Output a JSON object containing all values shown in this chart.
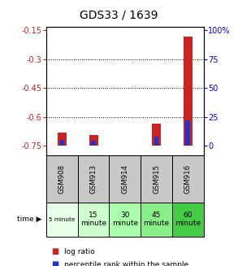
{
  "title": "GDS33 / 1639",
  "samples": [
    "GSM908",
    "GSM913",
    "GSM914",
    "GSM915",
    "GSM916"
  ],
  "time_labels": [
    "5 minute",
    "15\nminute",
    "30\nminute",
    "45\nminute",
    "60\nminute"
  ],
  "log_ratios": [
    -0.681,
    -0.693,
    -0.75,
    -0.633,
    -0.183
  ],
  "percentile_ranks": [
    5.0,
    4.5,
    0.5,
    8.0,
    22.0
  ],
  "ymin": -0.8,
  "ymax": -0.13,
  "yleft_ticks": [
    -0.15,
    -0.3,
    -0.45,
    -0.6,
    -0.75
  ],
  "yright_ticks": [
    0,
    25,
    50,
    75,
    100
  ],
  "bar_baseline": -0.75,
  "bar_color_red": "#cc2222",
  "bar_color_blue": "#2233cc",
  "bg_color": "#ffffff",
  "gsm_bg": "#c8c8c8",
  "time_bg_colors": [
    "#e8ffe8",
    "#ccffcc",
    "#aaffaa",
    "#88ee88",
    "#44cc44"
  ],
  "title_fontsize": 10,
  "tick_fontsize": 7,
  "label_fontsize": 6.5
}
